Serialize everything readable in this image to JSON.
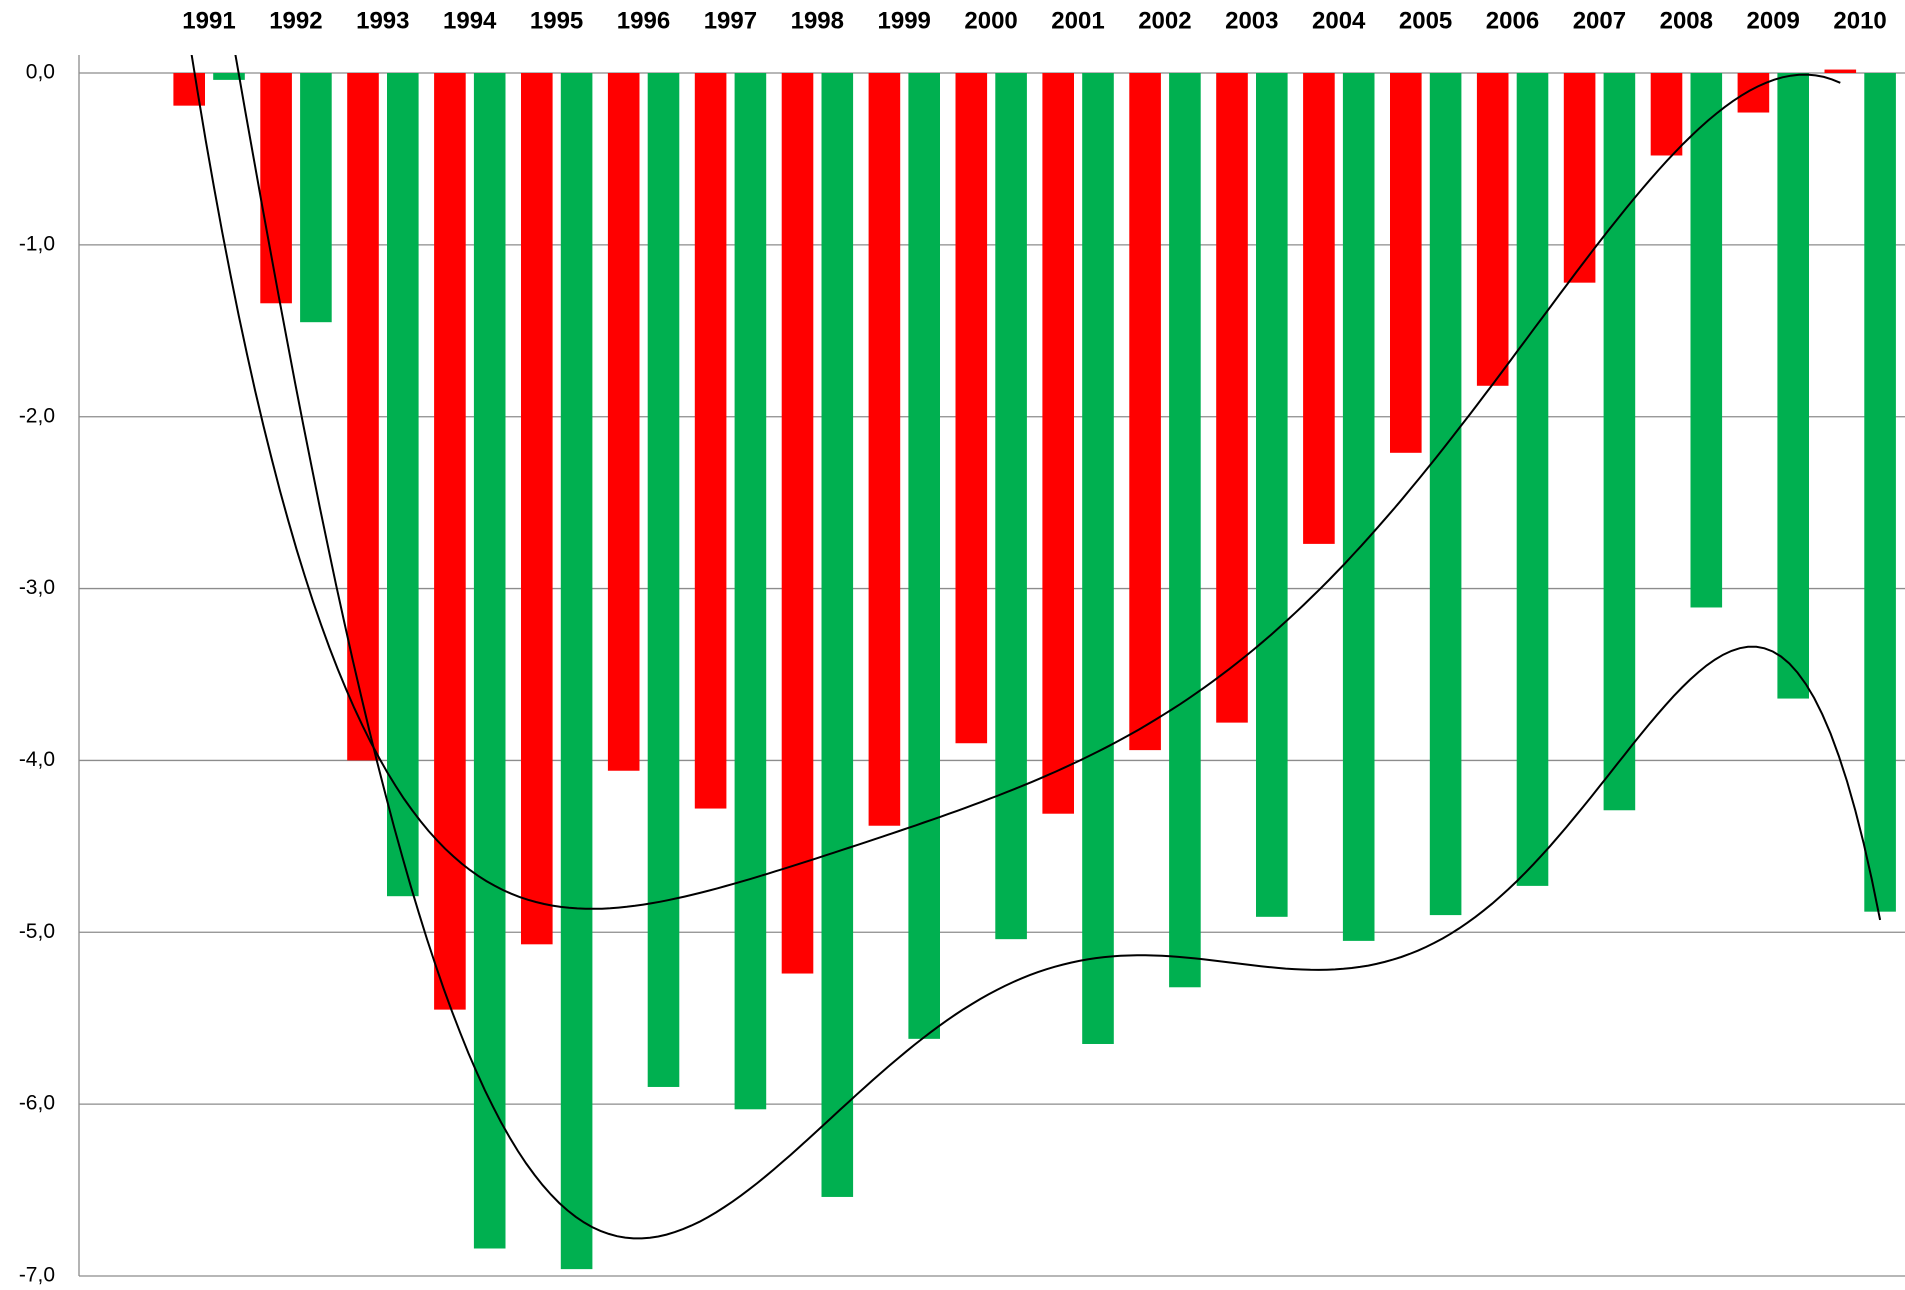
{
  "chart_data": {
    "type": "bar",
    "categories": [
      "1991",
      "1992",
      "1993",
      "1994",
      "1995",
      "1996",
      "1997",
      "1998",
      "1999",
      "2000",
      "2001",
      "2002",
      "2003",
      "2004",
      "2005",
      "2006",
      "2007",
      "2008",
      "2009",
      "2010"
    ],
    "series": [
      {
        "color": "#ff0000",
        "trendline_order": 6,
        "values": [
          -0.19,
          -1.34,
          -4.0,
          -5.45,
          -5.07,
          -4.06,
          -4.28,
          -5.24,
          -4.38,
          -3.9,
          -4.31,
          -3.94,
          -3.78,
          -2.74,
          -2.21,
          -1.82,
          -1.22,
          -0.48,
          -0.23,
          0.02
        ]
      },
      {
        "color": "#00b050",
        "trendline_order": 6,
        "values": [
          -0.04,
          -1.45,
          -4.79,
          -6.84,
          -6.96,
          -5.9,
          -6.03,
          -6.54,
          -5.62,
          -5.04,
          -5.65,
          -5.32,
          -4.91,
          -5.05,
          -4.9,
          -4.73,
          -4.29,
          -3.11,
          -3.64,
          -4.88
        ]
      }
    ],
    "ylim": [
      -7,
      0
    ],
    "yticks": [
      {
        "value": 0,
        "label": "0,0"
      },
      {
        "value": -1,
        "label": "-1,0"
      },
      {
        "value": -2,
        "label": "-2,0"
      },
      {
        "value": -3,
        "label": "-3,0"
      },
      {
        "value": -4,
        "label": "-4,0"
      },
      {
        "value": -5,
        "label": "-5,0"
      },
      {
        "value": -6,
        "label": "-6,0"
      },
      {
        "value": -7,
        "label": "-7,0"
      }
    ],
    "grid": true
  }
}
